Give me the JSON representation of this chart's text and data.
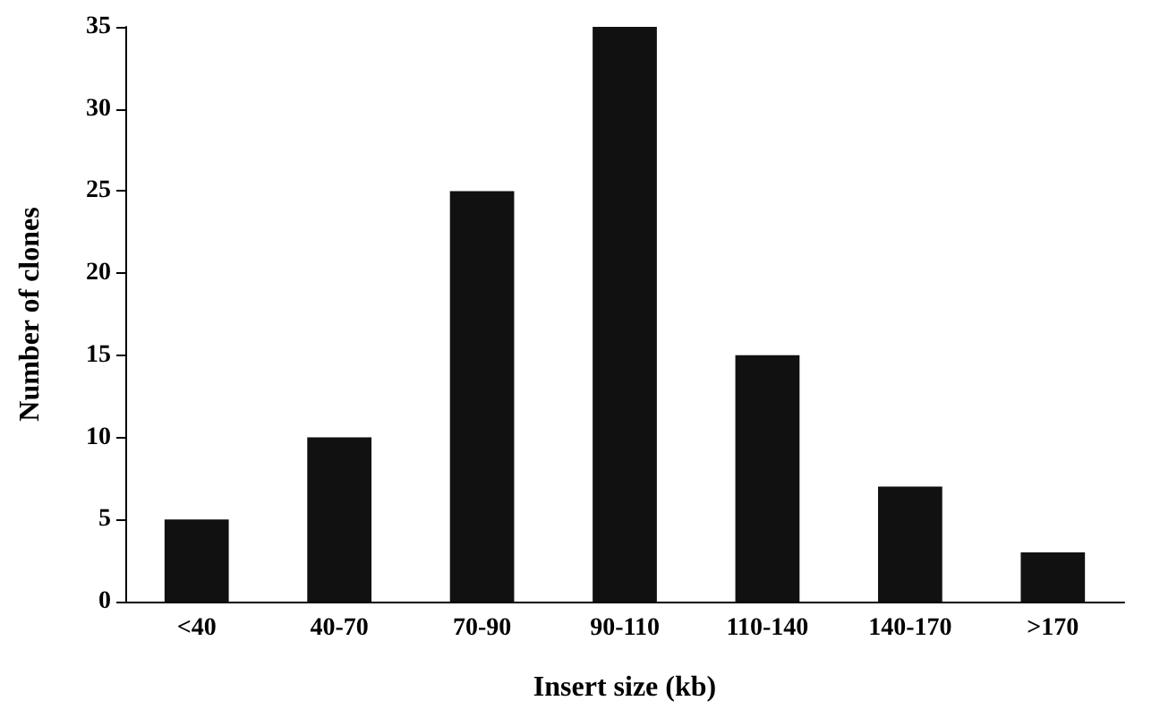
{
  "chart_data": {
    "type": "bar",
    "xlabel": "Insert size (kb)",
    "ylabel": "Number of clones",
    "categories": [
      "<40",
      "40-70",
      "70-90",
      "90-110",
      "110-140",
      "140-170",
      ">170"
    ],
    "values": [
      5,
      10,
      25,
      35,
      15,
      7,
      3
    ],
    "color": "#111111",
    "ylim": [
      0,
      35
    ],
    "yticks": [
      0,
      5,
      10,
      15,
      20,
      25,
      30,
      35
    ],
    "grid": false
  }
}
